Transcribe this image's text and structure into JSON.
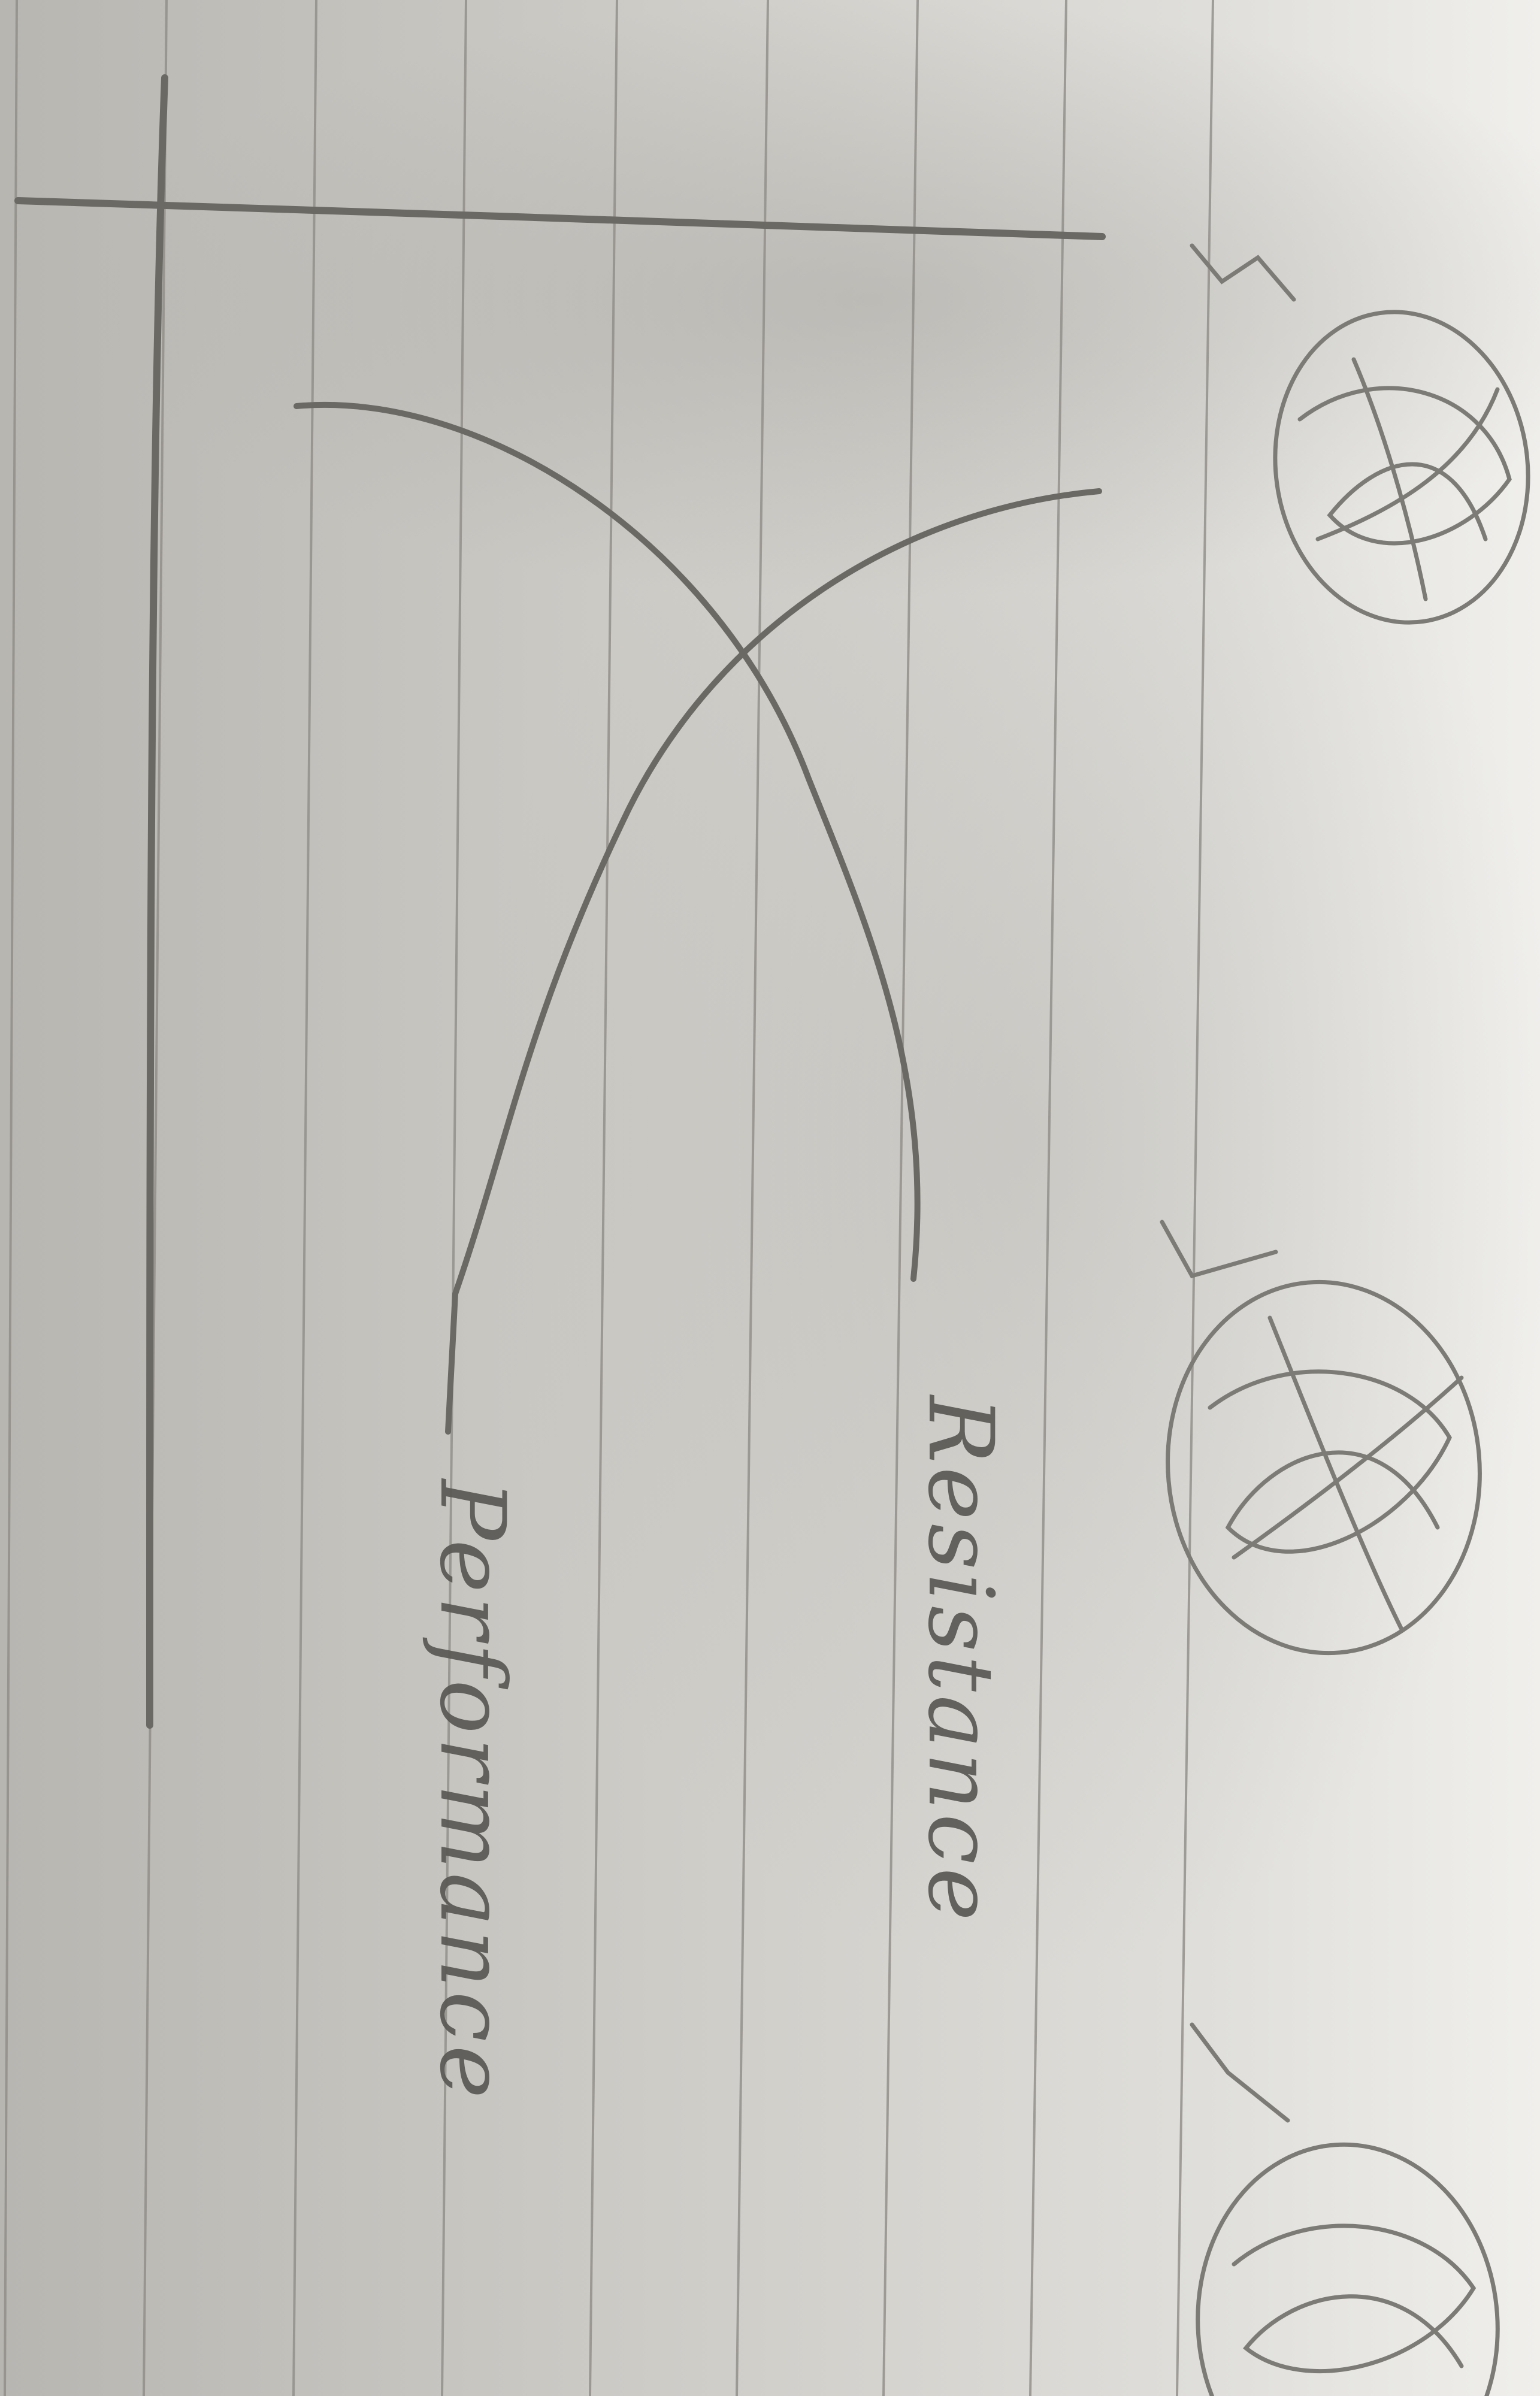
{
  "image": {
    "labels": {
      "curve_1": "Resistance",
      "curve_2": "Performance"
    },
    "ink_color": "#6b6964",
    "paper_color": "#d9d7d2",
    "rule_color": "#8e8c87"
  }
}
